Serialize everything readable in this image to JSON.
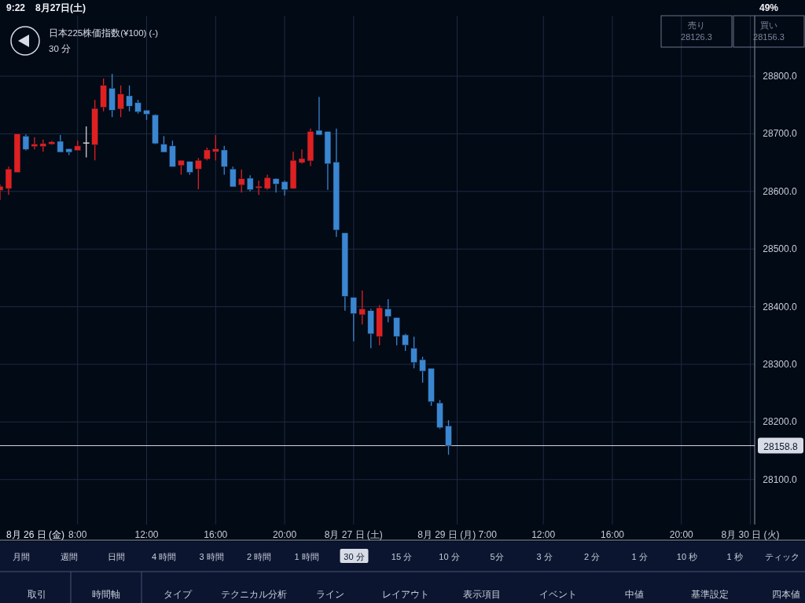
{
  "chart_data": {
    "type": "candlestick",
    "title": "日本225株価指数(¥100) (-)",
    "subtitle": "30 分",
    "categories": [
      null,
      null,
      null,
      null,
      null,
      null,
      null,
      null,
      null,
      "8:00",
      null,
      null,
      null,
      null,
      null,
      null,
      null,
      "12:00",
      null,
      null,
      null,
      null,
      null,
      null,
      null,
      "16:00",
      null,
      null,
      null,
      null,
      null,
      null,
      null,
      "20:00",
      null,
      null,
      null,
      null,
      null,
      null,
      null,
      "8月 27 日 (土)",
      null,
      null,
      null,
      null,
      null,
      null,
      null,
      null,
      null,
      null,
      null,
      "8月 29 日 (月) 7:00",
      null,
      null,
      null,
      null,
      null,
      null,
      null,
      null,
      null,
      "12:00",
      null,
      null,
      null,
      null,
      null,
      null,
      null,
      "16:00",
      null,
      null,
      null,
      null,
      null,
      null,
      null,
      "20:00",
      null,
      null,
      null,
      null,
      null,
      null,
      null,
      "8月 30 日 (火)"
    ],
    "ohlc": [
      [
        28602,
        28612,
        28585,
        28609
      ],
      [
        28605,
        28643,
        28594,
        28639
      ],
      [
        28633,
        28700,
        28633,
        28700
      ],
      [
        28696,
        28699,
        28671,
        28673
      ],
      [
        28678,
        28694,
        28673,
        28682
      ],
      [
        28678,
        28690,
        28669,
        28683
      ],
      [
        28682,
        28688,
        28681,
        28686
      ],
      [
        28687,
        28698,
        28668,
        28668
      ],
      [
        28674,
        28674,
        28663,
        28668
      ],
      [
        28671,
        28688,
        28671,
        28679
      ],
      [
        28684,
        28713,
        28659,
        28684
      ],
      [
        28681,
        28759,
        28654,
        28744
      ],
      [
        28746,
        28796,
        28739,
        28784
      ],
      [
        28779,
        28804,
        28729,
        28741
      ],
      [
        28743,
        28784,
        28729,
        28769
      ],
      [
        28766,
        28784,
        28739,
        28748
      ],
      [
        28754,
        28759,
        28735,
        28738
      ],
      [
        28741,
        28741,
        28724,
        28734
      ],
      [
        28733,
        28734,
        28682,
        28683
      ],
      [
        28682,
        28696,
        28668,
        28668
      ],
      [
        28679,
        28688,
        28643,
        28643
      ],
      [
        28645,
        28654,
        28629,
        28654
      ],
      [
        28652,
        28652,
        28629,
        28633
      ],
      [
        28639,
        28658,
        28604,
        28654
      ],
      [
        28656,
        28676,
        28654,
        28672
      ],
      [
        28669,
        28698,
        28654,
        28674
      ],
      [
        28672,
        28679,
        28629,
        28643
      ],
      [
        28639,
        28643,
        28608,
        28608
      ],
      [
        28611,
        28638,
        28598,
        28622
      ],
      [
        28623,
        28628,
        28600,
        28603
      ],
      [
        28606,
        28619,
        28594,
        28609
      ],
      [
        28605,
        28629,
        28603,
        28624
      ],
      [
        28622,
        28623,
        28598,
        28613
      ],
      [
        28617,
        28619,
        28593,
        28603
      ],
      [
        28605,
        28669,
        28605,
        28654
      ],
      [
        28650,
        28673,
        28648,
        28657
      ],
      [
        28653,
        28709,
        28644,
        28704
      ],
      [
        28706,
        28764,
        28698,
        28698
      ],
      [
        28704,
        28704,
        28603,
        28648
      ],
      [
        28651,
        28709,
        28521,
        28533
      ],
      [
        28528,
        28528,
        28393,
        28418
      ],
      [
        28416,
        28416,
        28340,
        28388
      ],
      [
        28386,
        28428,
        28369,
        28396
      ],
      [
        28393,
        28396,
        28328,
        28353
      ],
      [
        28348,
        28403,
        28333,
        28398
      ],
      [
        28396,
        28413,
        28373,
        28383
      ],
      [
        28381,
        28381,
        28333,
        28348
      ],
      [
        28351,
        28353,
        28323,
        28333
      ],
      [
        28328,
        28348,
        28293,
        28303
      ],
      [
        28308,
        28313,
        28268,
        28288
      ],
      [
        28293,
        28293,
        28228,
        28235
      ],
      [
        28233,
        28238,
        28188,
        28190
      ],
      [
        28193,
        28203,
        28143,
        28159
      ],
      null,
      null,
      null,
      null,
      null,
      null,
      null,
      null,
      null,
      null,
      null,
      null,
      null,
      null,
      null,
      null,
      null,
      null,
      null,
      null,
      null,
      null,
      null,
      null,
      null,
      null,
      null,
      null,
      null,
      null,
      null,
      null,
      null,
      null,
      null
    ],
    "colors": [
      "#e02020",
      "#e02020",
      "#e02020",
      "#3a86d0",
      "#e02020",
      "#e02020",
      "#e02020",
      "#3a86d0",
      "#3a86d0",
      "#e02020",
      "#d0d0d0",
      "#e02020",
      "#e02020",
      "#3a86d0",
      "#e02020",
      "#3a86d0",
      "#3a86d0",
      "#3a86d0",
      "#3a86d0",
      "#3a86d0",
      "#3a86d0",
      "#e02020",
      "#3a86d0",
      "#e02020",
      "#e02020",
      "#e02020",
      "#3a86d0",
      "#3a86d0",
      "#e02020",
      "#3a86d0",
      "#e02020",
      "#e02020",
      "#3a86d0",
      "#3a86d0",
      "#e02020",
      "#e02020",
      "#e02020",
      "#3a86d0",
      "#3a86d0",
      "#3a86d0",
      "#3a86d0",
      "#3a86d0",
      "#e02020",
      "#3a86d0",
      "#e02020",
      "#3a86d0",
      "#3a86d0",
      "#3a86d0",
      "#3a86d0",
      "#3a86d0",
      "#3a86d0",
      "#3a86d0",
      "#3a86d0",
      null,
      null,
      null,
      null,
      null,
      null,
      null,
      null,
      null,
      null,
      null,
      null,
      null,
      null,
      null,
      null,
      null,
      null,
      null,
      null,
      null,
      null,
      null,
      null,
      null,
      null,
      null,
      null,
      null,
      null,
      null,
      null,
      null,
      null,
      null
    ],
    "ylim": [
      28022,
      28905
    ],
    "yticks": [
      {
        "value": 28100,
        "label": "28100.0"
      },
      {
        "value": 28200,
        "label": "28200.0"
      },
      {
        "value": 28300,
        "label": "28300.0"
      },
      {
        "value": 28400,
        "label": "28400.0"
      },
      {
        "value": 28500,
        "label": "28500.0"
      },
      {
        "value": 28600,
        "label": "28600.0"
      },
      {
        "value": 28700,
        "label": "28700.0"
      },
      {
        "value": 28800,
        "label": "28800.0"
      }
    ],
    "grid": true,
    "ref_lines": [
      {
        "axis": "y",
        "value": 28158.8,
        "label": "28158.8",
        "color": "#d8dce6"
      }
    ],
    "annotations": [
      "8月 26 日 (金)",
      "9:22",
      "8月27日(土)",
      "49%",
      "売り",
      "28126.3",
      "買い",
      "28156.3",
      "月間",
      "週間",
      "日間",
      "4 時間",
      "3 時間",
      "2 時間",
      "1 時間",
      "30 分",
      "15 分",
      "10 分",
      "5分",
      "3 分",
      "2 分",
      "1 分",
      "10 秒",
      "1 秒",
      "ティック",
      "取引",
      "時間軸",
      "タイプ",
      "テクニカル分析",
      "ライン",
      "レイアウト",
      "表示項目",
      "イベント",
      "中値",
      "基準設定",
      "四本値"
    ]
  }
}
